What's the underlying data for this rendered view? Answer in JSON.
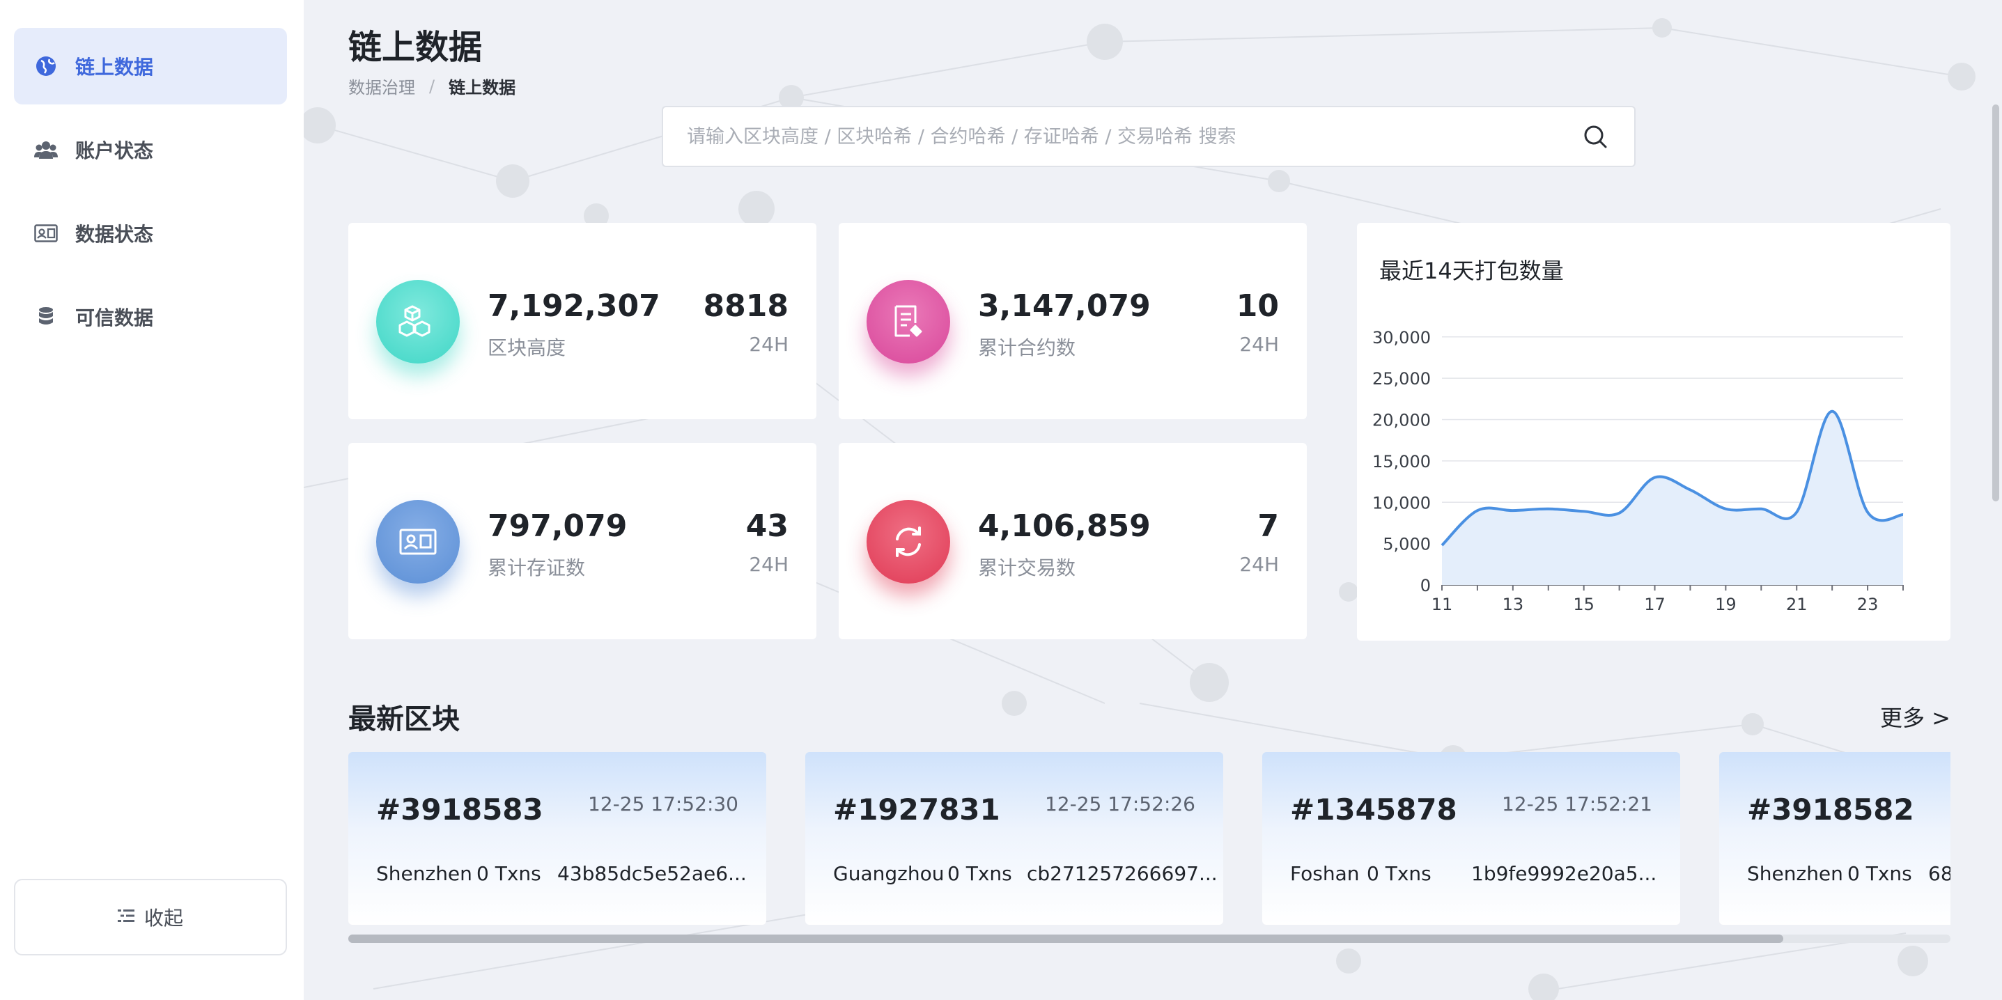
{
  "sidebar": {
    "items": [
      {
        "label": "链上数据",
        "icon": "globe-icon",
        "active": true
      },
      {
        "label": "账户状态",
        "icon": "users-icon",
        "active": false
      },
      {
        "label": "数据状态",
        "icon": "id-card-icon",
        "active": false
      },
      {
        "label": "可信数据",
        "icon": "database-icon",
        "active": false
      }
    ],
    "collapse_label": "收起"
  },
  "header": {
    "title": "链上数据",
    "breadcrumb": [
      "数据治理",
      "链上数据"
    ],
    "breadcrumb_sep": "/"
  },
  "search": {
    "placeholder": "请输入区块高度 / 区块哈希 / 合约哈希 / 存证哈希 / 交易哈希 搜索"
  },
  "stats": [
    {
      "value": "7,192,307",
      "label": "区块高度",
      "delta": "8818",
      "period": "24H",
      "color": "#3fd6c6",
      "icon": "cubes-icon"
    },
    {
      "value": "3,147,079",
      "label": "累计合约数",
      "delta": "10",
      "period": "24H",
      "color": "#d9479a",
      "icon": "contract-icon"
    },
    {
      "value": "797,079",
      "label": "累计存证数",
      "delta": "43",
      "period": "24H",
      "color": "#5b8fd6",
      "icon": "certificate-icon"
    },
    {
      "value": "4,106,859",
      "label": "累计交易数",
      "delta": "7",
      "period": "24H",
      "color": "#e03a55",
      "icon": "refresh-icon"
    }
  ],
  "chart": {
    "title": "最近14天打包数量"
  },
  "chart_data": {
    "type": "area",
    "title": "最近14天打包数量",
    "x": [
      11,
      12,
      13,
      14,
      15,
      16,
      17,
      18,
      19,
      20,
      21,
      22,
      23,
      24
    ],
    "x_ticks": [
      "11",
      "13",
      "15",
      "17",
      "19",
      "21",
      "23"
    ],
    "series": [
      {
        "values": [
          4800,
          9000,
          9000,
          9200,
          8900,
          8700,
          13000,
          11500,
          9200,
          9200,
          8800,
          21000,
          8800,
          8500
        ]
      }
    ],
    "y_ticks": [
      "0",
      "5,000",
      "10,000",
      "15,000",
      "20,000",
      "25,000",
      "30,000"
    ],
    "ylim": [
      0,
      32000
    ],
    "grid": true,
    "line_color": "#4a90e2",
    "fill_color": "#e4eefb"
  },
  "latest": {
    "title": "最新区块",
    "more_label": "更多 >",
    "blocks": [
      {
        "number": "#3918583",
        "time": "12-25 17:52:30",
        "city": "Shenzhen",
        "txns": "0 Txns",
        "hash": "43b85dc5e52ae6..."
      },
      {
        "number": "#1927831",
        "time": "12-25 17:52:26",
        "city": "Guangzhou",
        "txns": "0 Txns",
        "hash": "cb271257266697..."
      },
      {
        "number": "#1345878",
        "time": "12-25 17:52:21",
        "city": "Foshan",
        "txns": "0 Txns",
        "hash": "1b9fe9992e20a5..."
      },
      {
        "number": "#3918582",
        "time": "",
        "city": "Shenzhen",
        "txns": "0 Txns",
        "hash": "68"
      }
    ]
  }
}
